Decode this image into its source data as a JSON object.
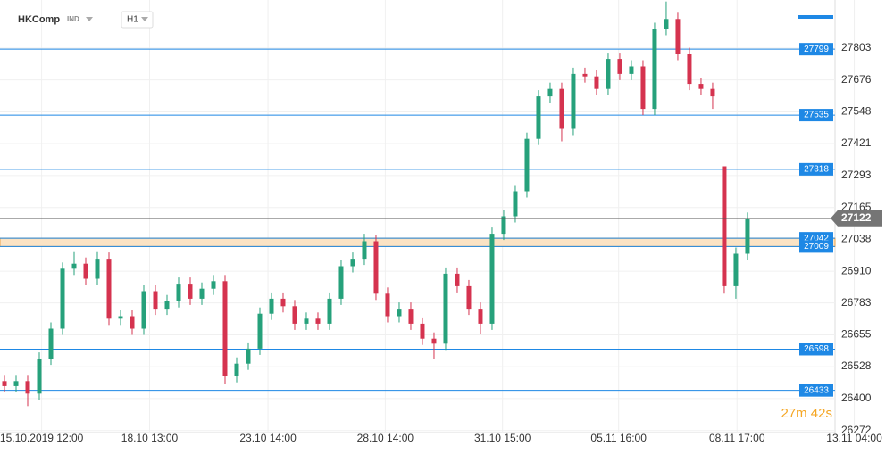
{
  "chart_data": {
    "type": "candlestick",
    "symbol": "HKComp",
    "market": "IND",
    "timeframe": "H1",
    "timer": "27m 42s",
    "up_color": "#26a17b",
    "down_color": "#d5334f",
    "level_color": "#1e88e5",
    "zone_color": "#fbe3c4",
    "grid": true,
    "open": [
      26470,
      26450,
      26470,
      26420,
      26560,
      26680,
      26920,
      26940,
      26880,
      26960,
      26720,
      26730,
      26680,
      26830,
      26760,
      26790,
      26860,
      26800,
      26840,
      26870,
      26490,
      26540,
      26600,
      26740,
      26800,
      26770,
      26700,
      26720,
      26700,
      26800,
      26930,
      26960,
      27030,
      26820,
      26730,
      26760,
      26700,
      26640,
      26620,
      26900,
      26850,
      26760,
      26700,
      27060,
      27130,
      27230,
      27440,
      27610,
      27640,
      27480,
      27700,
      27690,
      27640,
      27760,
      27700,
      27730,
      27560,
      27880,
      27920,
      27780,
      27660,
      27640,
      27330,
      26850,
      26980
    ],
    "high": [
      26495,
      26495,
      26495,
      26585,
      26705,
      26945,
      26990,
      26965,
      26990,
      26985,
      26755,
      26755,
      26855,
      26855,
      26815,
      26885,
      26885,
      26865,
      26895,
      26895,
      26565,
      26625,
      26765,
      26825,
      26825,
      26795,
      26745,
      26745,
      26825,
      26955,
      26985,
      27060,
      27055,
      26845,
      26785,
      26785,
      26725,
      26665,
      26925,
      26925,
      26875,
      26785,
      27085,
      27155,
      27255,
      27465,
      27635,
      27665,
      27665,
      27725,
      27725,
      27715,
      27785,
      27785,
      27755,
      27755,
      27905,
      27990,
      27945,
      27805,
      27685,
      27665,
      27330,
      27005,
      27145
    ],
    "low": [
      26425,
      26425,
      26370,
      26395,
      26535,
      26655,
      26895,
      26855,
      26855,
      26695,
      26695,
      26655,
      26655,
      26735,
      26735,
      26765,
      26775,
      26775,
      26815,
      26460,
      26465,
      26515,
      26575,
      26715,
      26745,
      26675,
      26675,
      26675,
      26675,
      26775,
      26905,
      26935,
      26795,
      26705,
      26705,
      26675,
      26615,
      26560,
      26595,
      26825,
      26735,
      26660,
      26675,
      27035,
      27105,
      27205,
      27415,
      27585,
      27430,
      27455,
      27665,
      27615,
      27615,
      27675,
      27675,
      27535,
      27535,
      27855,
      27755,
      27635,
      27615,
      27560,
      26820,
      26800,
      26955
    ],
    "close": [
      26450,
      26470,
      26420,
      26560,
      26680,
      26920,
      26940,
      26880,
      26960,
      26720,
      26730,
      26680,
      26830,
      26760,
      26790,
      26860,
      26800,
      26840,
      26870,
      26490,
      26540,
      26600,
      26740,
      26800,
      26770,
      26700,
      26720,
      26700,
      26800,
      26930,
      26960,
      27030,
      26820,
      26730,
      26760,
      26700,
      26640,
      26620,
      26900,
      26850,
      26760,
      26700,
      27060,
      27130,
      27230,
      27440,
      27610,
      27640,
      27480,
      27700,
      27690,
      27640,
      27760,
      27700,
      27730,
      27560,
      27880,
      27920,
      27780,
      27660,
      27640,
      27610,
      26850,
      26980,
      27120
    ],
    "levels": [
      27799,
      27535,
      27318,
      27042,
      27009,
      26598,
      26433
    ],
    "current_price": 27122,
    "ylim": [
      26264,
      27996
    ],
    "yticks": [
      27803,
      27676,
      27548,
      27421,
      27293,
      27165,
      27038,
      26910,
      26783,
      26655,
      26528,
      26400,
      26272
    ],
    "xlim": [
      -0.385,
      76.62
    ],
    "xticks": [
      {
        "value": 3.2,
        "label": "15.10.2019  12:00"
      },
      {
        "value": 12.5,
        "label": "18.10  13:00"
      },
      {
        "value": 22.7,
        "label": "23.10  14:00"
      },
      {
        "value": 32.8,
        "label": "28.10  14:00"
      },
      {
        "value": 42.9,
        "label": "31.10  15:00"
      },
      {
        "value": 52.9,
        "label": "05.11  16:00"
      },
      {
        "value": 63.1,
        "label": "08.11  17:00"
      },
      {
        "value": 73.2,
        "label": "13.11  04:00"
      }
    ]
  }
}
